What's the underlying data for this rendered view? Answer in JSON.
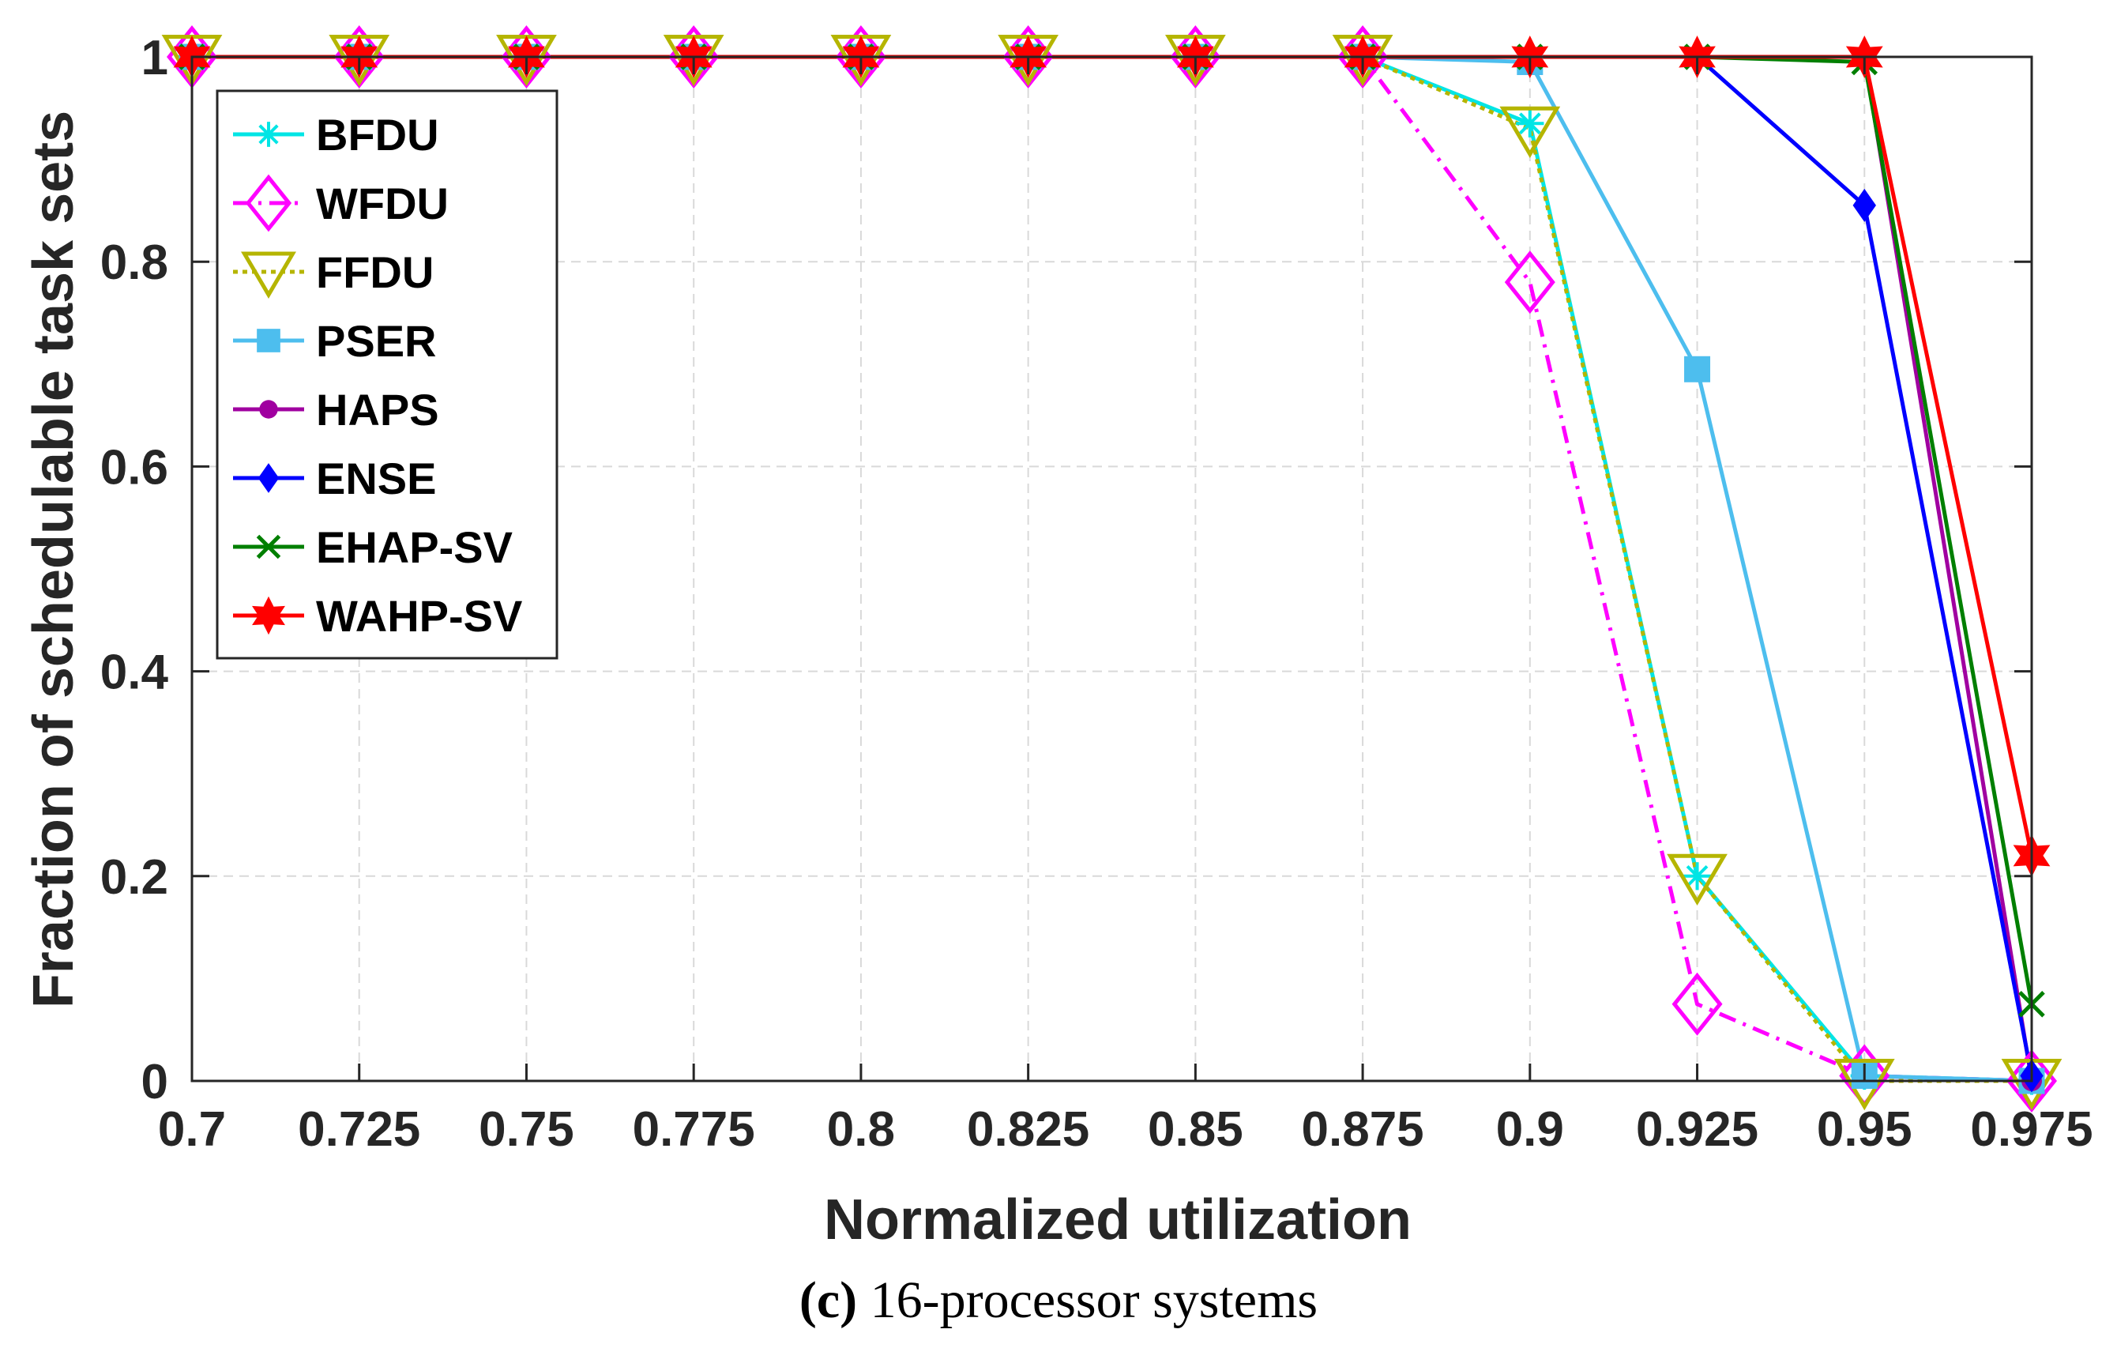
{
  "chart_data": {
    "type": "line",
    "title": "",
    "xlabel": "Normalized utilization",
    "ylabel": "Fraction of schedulable task sets",
    "x": [
      0.7,
      0.725,
      0.75,
      0.775,
      0.8,
      0.825,
      0.85,
      0.875,
      0.9,
      0.925,
      0.95,
      0.975
    ],
    "x_tick_labels": [
      "0.7",
      "0.725",
      "0.75",
      "0.775",
      "0.8",
      "0.825",
      "0.85",
      "0.875",
      "0.9",
      "0.925",
      "0.95",
      "0.975"
    ],
    "y_tick_labels": [
      "0",
      "0.2",
      "0.4",
      "0.6",
      "0.8",
      "1"
    ],
    "y_ticks": [
      0,
      0.2,
      0.4,
      0.6,
      0.8,
      1.0
    ],
    "xlim": [
      0.7,
      0.975
    ],
    "ylim": [
      0,
      1
    ],
    "grid": true,
    "legend_position": "top-left",
    "series": [
      {
        "name": "BFDU",
        "color": "#00e5e5",
        "marker": "asterisk",
        "dash": "solid",
        "values": [
          1,
          1,
          1,
          1,
          1,
          1,
          1,
          1,
          0.935,
          0.2,
          0.005,
          0
        ]
      },
      {
        "name": "WFDU",
        "color": "#ff00ff",
        "marker": "diamond-open",
        "dash": "dashdot",
        "values": [
          1,
          1,
          1,
          1,
          1,
          1,
          1,
          1,
          0.78,
          0.075,
          0.005,
          0
        ]
      },
      {
        "name": "FFDU",
        "color": "#b5b500",
        "marker": "triangle-down-open",
        "dash": "dotted",
        "values": [
          1,
          1,
          1,
          1,
          1,
          1,
          1,
          1,
          0.93,
          0.2,
          0,
          0
        ]
      },
      {
        "name": "PSER",
        "color": "#4dbeee",
        "marker": "square",
        "dash": "solid",
        "values": [
          1,
          1,
          1,
          1,
          1,
          1,
          1,
          1,
          0.995,
          0.695,
          0.005,
          0
        ]
      },
      {
        "name": "HAPS",
        "color": "#a000a0",
        "marker": "circle",
        "dash": "solid",
        "values": [
          1,
          1,
          1,
          1,
          1,
          1,
          1,
          1,
          1,
          1,
          1,
          0
        ]
      },
      {
        "name": "ENSE",
        "color": "#0000ff",
        "marker": "diamond",
        "dash": "solid",
        "values": [
          1,
          1,
          1,
          1,
          1,
          1,
          1,
          1,
          1,
          1,
          0.855,
          0.005
        ]
      },
      {
        "name": "EHAP-SV",
        "color": "#007f00",
        "marker": "x",
        "dash": "solid",
        "values": [
          1,
          1,
          1,
          1,
          1,
          1,
          1,
          1,
          1,
          1,
          0.995,
          0.075
        ]
      },
      {
        "name": "WAHP-SV",
        "color": "#ff0000",
        "marker": "hexagram",
        "dash": "solid",
        "values": [
          1,
          1,
          1,
          1,
          1,
          1,
          1,
          1,
          1,
          1,
          1,
          0.22
        ]
      }
    ]
  },
  "caption": {
    "label": "(c)",
    "text": "16-processor systems"
  }
}
